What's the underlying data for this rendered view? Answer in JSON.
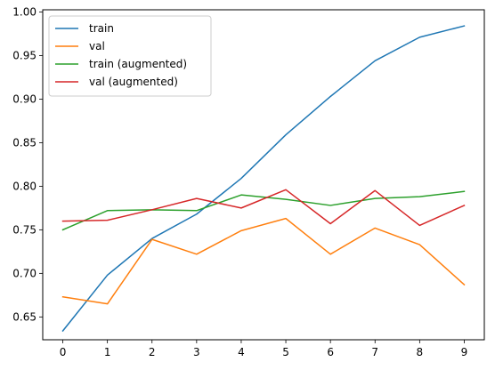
{
  "chart_data": {
    "type": "line",
    "title": "",
    "xlabel": "",
    "ylabel": "",
    "x": [
      0,
      1,
      2,
      3,
      4,
      5,
      6,
      7,
      8,
      9
    ],
    "xlim": [
      -0.45,
      9.45
    ],
    "ylim": [
      0.6238,
      1.0025
    ],
    "xticks": [
      0,
      1,
      2,
      3,
      4,
      5,
      6,
      7,
      8,
      9
    ],
    "yticks": [
      0.65,
      0.7,
      0.75,
      0.8,
      0.85,
      0.9,
      0.95,
      1.0
    ],
    "ytick_labels": [
      "0.65",
      "0.70",
      "0.75",
      "0.80",
      "0.85",
      "0.90",
      "0.95",
      "1.00"
    ],
    "grid": false,
    "legend_position": "top-left",
    "series": [
      {
        "name": "train",
        "color": "#1f77b4",
        "values": [
          0.634,
          0.698,
          0.74,
          0.768,
          0.809,
          0.859,
          0.903,
          0.944,
          0.971,
          0.984
        ]
      },
      {
        "name": "val",
        "color": "#ff7f0e",
        "values": [
          0.673,
          0.665,
          0.739,
          0.722,
          0.749,
          0.763,
          0.722,
          0.752,
          0.733,
          0.687
        ]
      },
      {
        "name": "train (augmented)",
        "color": "#2ca02c",
        "values": [
          0.75,
          0.772,
          0.773,
          0.772,
          0.79,
          0.785,
          0.778,
          0.786,
          0.788,
          0.794
        ]
      },
      {
        "name": "val (augmented)",
        "color": "#d62728",
        "values": [
          0.76,
          0.761,
          0.773,
          0.786,
          0.775,
          0.796,
          0.757,
          0.795,
          0.755,
          0.778
        ]
      }
    ]
  }
}
